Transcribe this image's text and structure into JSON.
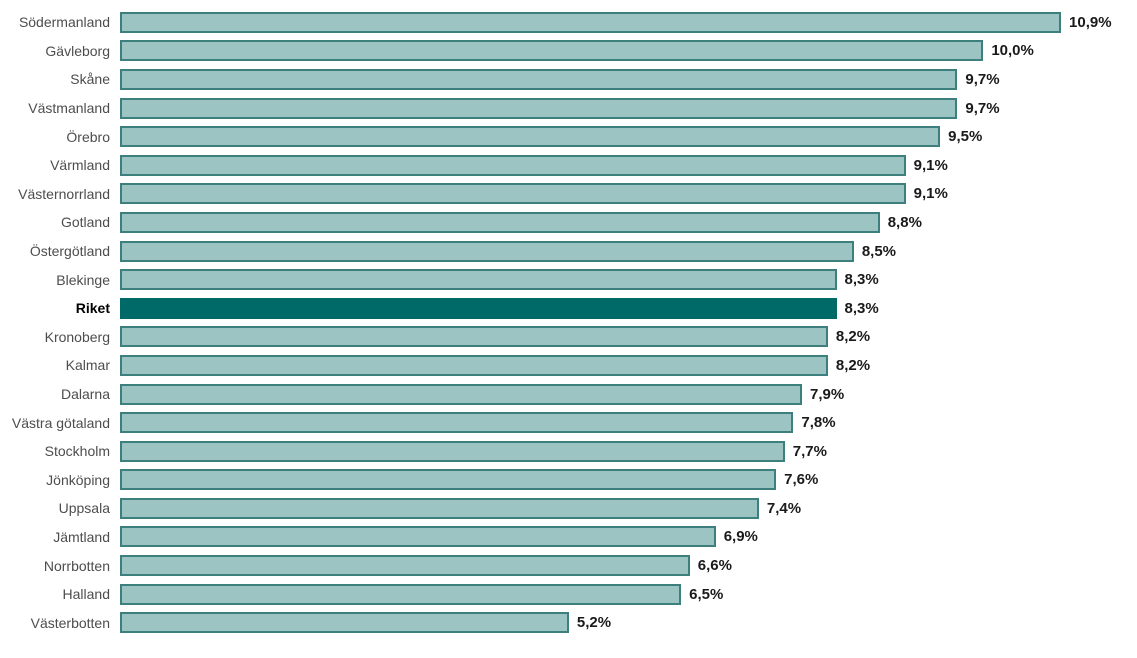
{
  "chart_data": {
    "type": "bar",
    "orientation": "horizontal",
    "title": "",
    "xlabel": "",
    "ylabel": "",
    "xlim": [
      0,
      11.78
    ],
    "grid": false,
    "legend": false,
    "value_format": "swedish-decimal-comma-percent",
    "categories": [
      "Södermanland",
      "Gävleborg",
      "Skåne",
      "Västmanland",
      "Örebro",
      "Värmland",
      "Västernorrland",
      "Gotland",
      "Östergötland",
      "Blekinge",
      "Riket",
      "Kronoberg",
      "Kalmar",
      "Dalarna",
      "Västra götaland",
      "Stockholm",
      "Jönköping",
      "Uppsala",
      "Jämtland",
      "Norrbotten",
      "Halland",
      "Västerbotten"
    ],
    "values": [
      10.9,
      10.0,
      9.7,
      9.7,
      9.5,
      9.1,
      9.1,
      8.8,
      8.5,
      8.3,
      8.3,
      8.2,
      8.2,
      7.9,
      7.8,
      7.7,
      7.6,
      7.4,
      6.9,
      6.6,
      6.5,
      5.2
    ],
    "value_labels": [
      "10,9%",
      "10,0%",
      "9,7%",
      "9,7%",
      "9,5%",
      "9,1%",
      "9,1%",
      "8,8%",
      "8,5%",
      "8,3%",
      "8,3%",
      "8,2%",
      "8,2%",
      "7,9%",
      "7,8%",
      "7,7%",
      "7,6%",
      "7,4%",
      "6,9%",
      "6,6%",
      "6,5%",
      "5,2%"
    ],
    "highlight_category": "Riket",
    "colors": {
      "bar_fill": "#9BC4C2",
      "bar_border": "#3D7F7D",
      "highlight_fill": "#006A69",
      "category_label": "#4d4d4d",
      "value_label": "#1a1a1a",
      "background": "#ffffff"
    }
  }
}
